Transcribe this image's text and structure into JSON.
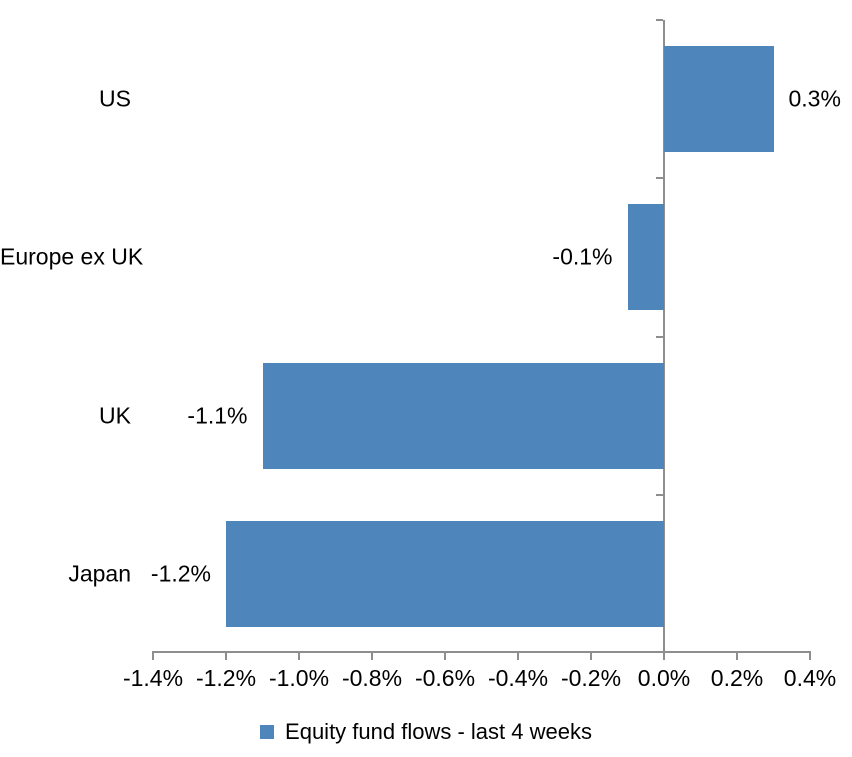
{
  "chart_data": {
    "type": "bar",
    "orientation": "horizontal",
    "title": "",
    "xlabel": "",
    "ylabel": "",
    "categories": [
      "US",
      "Europe ex UK",
      "UK",
      "Japan"
    ],
    "series": [
      {
        "name": "Equity fund flows - last 4 weeks",
        "values": [
          0.3,
          -0.1,
          -1.1,
          -1.2
        ],
        "data_labels": [
          "0.3%",
          "-0.1%",
          "-1.1%",
          "-1.2%"
        ],
        "color": "#4E86BC"
      }
    ],
    "xlim": [
      -1.4,
      0.4
    ],
    "x_ticks": [
      {
        "value": -1.4,
        "label": "-1.4%"
      },
      {
        "value": -1.2,
        "label": "-1.2%"
      },
      {
        "value": -1.0,
        "label": "-1.0%"
      },
      {
        "value": -0.8,
        "label": "-0.8%"
      },
      {
        "value": -0.6,
        "label": "-0.6%"
      },
      {
        "value": -0.4,
        "label": "-0.4%"
      },
      {
        "value": -0.2,
        "label": "-0.2%"
      },
      {
        "value": 0.0,
        "label": "0.0%"
      },
      {
        "value": 0.2,
        "label": "0.2%"
      },
      {
        "value": 0.4,
        "label": "0.4%"
      }
    ],
    "grid": false,
    "legend_position": "bottom",
    "axis_color": "#8E8E8E",
    "text_color": "#000000",
    "background_color": "#FFFFFF"
  }
}
